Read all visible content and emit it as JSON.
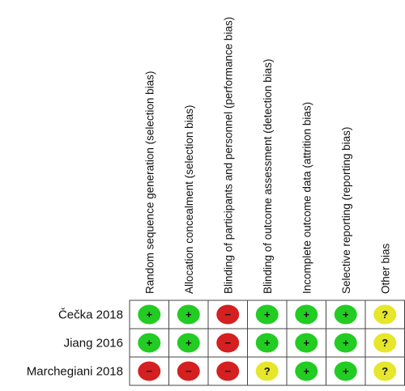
{
  "chart_data": {
    "type": "table",
    "columns": [
      "Random sequence generation (selection bias)",
      "Allocation concealment (selection bias)",
      "Blinding of participants and personnel (performance bias)",
      "Blinding of outcome assessment (detection bias)",
      "Incomplete outcome data (attrition bias)",
      "Selective reporting (reporting bias)",
      "Other bias"
    ],
    "rows": [
      {
        "study": "Čečka 2018",
        "ratings": [
          "low",
          "low",
          "high",
          "low",
          "low",
          "low",
          "unclear"
        ]
      },
      {
        "study": "Jiang 2016",
        "ratings": [
          "low",
          "low",
          "high",
          "low",
          "low",
          "low",
          "unclear"
        ]
      },
      {
        "study": "Marchegiani 2018",
        "ratings": [
          "high",
          "high",
          "high",
          "unclear",
          "low",
          "low",
          "unclear"
        ]
      }
    ],
    "symbols": {
      "low": "+",
      "high": "−",
      "unclear": "?"
    },
    "colors": {
      "low": "#22cc22",
      "high": "#d42020",
      "unclear": "#e6e62a",
      "grid": "#444444"
    }
  }
}
